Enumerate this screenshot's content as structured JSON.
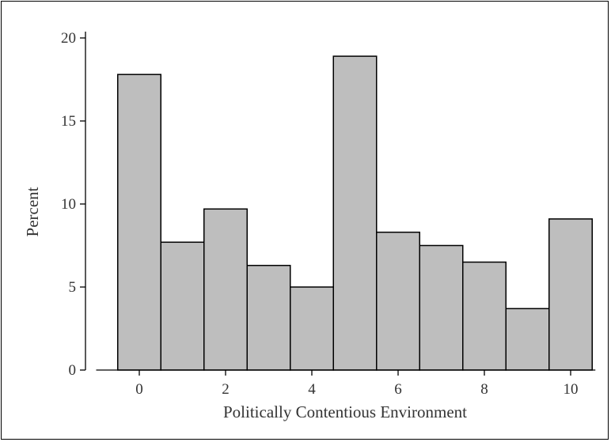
{
  "chart_data": {
    "type": "bar",
    "title": "",
    "xlabel": "Politically Contentious Environment",
    "ylabel": "Percent",
    "categories": [
      0,
      1,
      2,
      3,
      4,
      5,
      6,
      7,
      8,
      9,
      10
    ],
    "values": [
      17.8,
      7.7,
      9.7,
      6.3,
      5.0,
      18.9,
      8.3,
      7.5,
      6.5,
      3.7,
      9.1
    ],
    "xlim": [
      -1,
      10.5
    ],
    "ylim": [
      0,
      20
    ],
    "xticks": [
      0,
      2,
      4,
      6,
      8,
      10
    ],
    "yticks": [
      0,
      5,
      10,
      15,
      20
    ],
    "bar_color": "#bebebe",
    "edge_color": "#000000",
    "grid": false,
    "legend": "none"
  }
}
